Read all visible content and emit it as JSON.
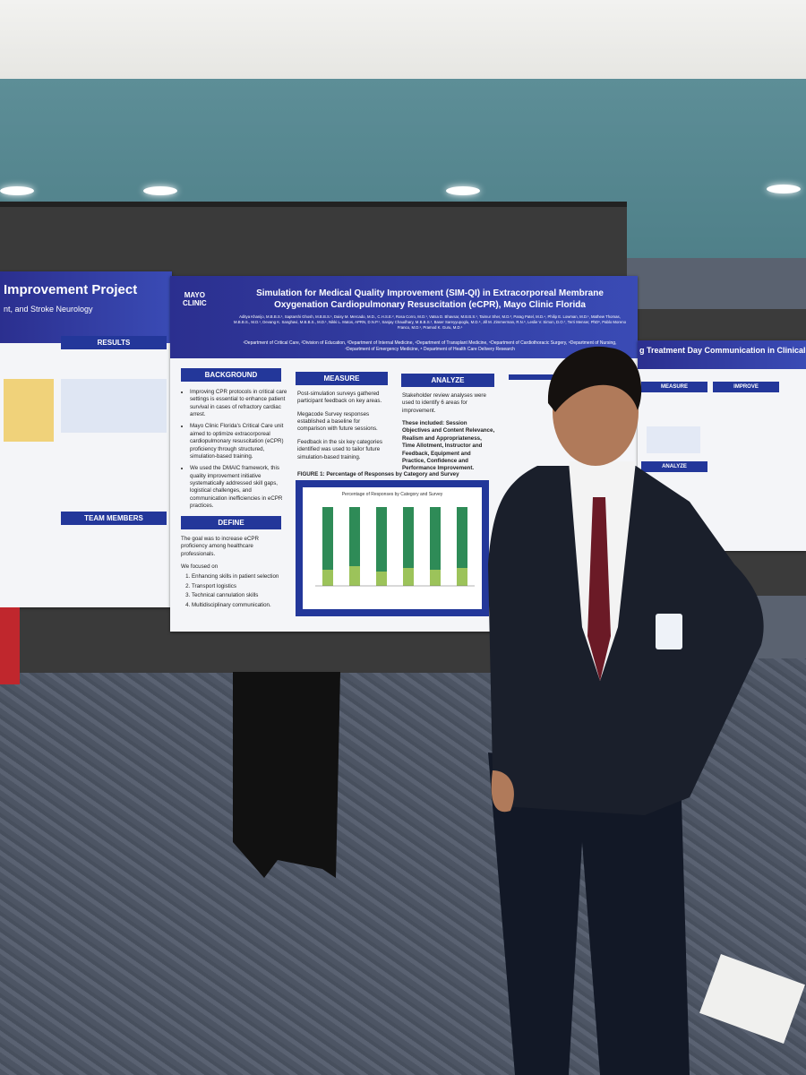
{
  "center_poster": {
    "logo": [
      "MAYO",
      "CLINIC"
    ],
    "title": "Simulation for Medical Quality Improvement (SIM-QI) in Extracorporeal Membrane Oxygenation Cardiopulmonary Resuscitation (eCPR), Mayo Clinic Florida",
    "authors": "Aditya Khanijo, M.B.B.S.¹, Saptarshi Ghosh, M.B.B.S.¹, Daisy M. Mercado, M.D., C.H.S.E.², Rosa Corro, M.D.¹, Vatsa D. Bhavsar, M.B.B.S.¹, Taimur Sher, M.D.³, Parag Patel, M.D.⁴, Philip E. Lowman, M.D.¹, Mathew Thomas, M.B.B.S., M.D.¹, Devang K. Sanghavi, M.B.B.S., M.D.¹, Nikki L. Matos, APRN, D.N.P.¹, Sanjay Chaudhary, M.B.B.S.¹, Baser Sareyyupoglu, M.D.⁵, Jill M. Zimmerman, R.N.⁶, Leslie V. Simon, D.O.⁷, Terri Menser, PhD⁸, Pablo Moreno Franco, M.D.¹, Pramod K. Guru, M.D.¹",
    "affiliations": "¹Department of Critical Care, ²Division of Education, ³Department of Internal Medicine, ⁴Department of Transplant Medicine, ⁵Department of Cardiothoracic Surgery, ⁶Department of Nursing, ⁷Department of Emergency Medicine, ⁸ Department of Health Care Delivery Research",
    "background": {
      "heading": "BACKGROUND",
      "items": [
        "Improving CPR protocols in critical care settings is essential to enhance patient survival in cases of refractory cardiac arrest.",
        "Mayo Clinic Florida's Critical Care unit aimed to optimize extracorporeal cardiopulmonary resuscitation (eCPR) proficiency through structured, simulation-based training.",
        "We used the DMAIC framework, this quality improvement initiative systematically addressed skill gaps, logistical challenges, and communication inefficiencies in eCPR practices."
      ]
    },
    "define": {
      "heading": "DEFINE",
      "intro": "The goal was to increase eCPR proficiency among healthcare professionals.",
      "lead": "We focused on",
      "items": [
        "Enhancing skills in patient selection",
        "Transport logistics",
        "Technical cannulation skills",
        "Multidisciplinary communication."
      ]
    },
    "measure": {
      "heading": "MEASURE",
      "paragraphs": [
        "Post-simulation surveys gathered participant feedback on key areas.",
        "Megacode Survey responses established a baseline for comparison with future sessions.",
        "Feedback in the six key categories identified was used to tailor future simulation-based training."
      ]
    },
    "analyze": {
      "heading": "ANALYZE",
      "paragraphs": [
        "Stakeholder review analyses were used to identify 6 areas for improvement.",
        "These included: Session Objectives and Content Relevance, Realism and Appropriateness, Time Allotment, Instructor and Feedback, Equipment and Practice, Confidence and Performance Improvement."
      ]
    },
    "figure": {
      "caption": "FIGURE 1: Percentage of Responses by Category and Survey",
      "chart_title": "Percentage of Responses by Category and Survey"
    }
  },
  "left_poster": {
    "title": "Improvement Project",
    "subtitle": "nt, and Stroke Neurology",
    "headings": [
      "RESULTS",
      "TEAM MEMBERS"
    ]
  },
  "right_poster": {
    "title": "g Treatment Day Communication in Clinical Resea",
    "headings": [
      "MEASURE",
      "IMPROVE",
      "ANALYZE"
    ]
  }
}
